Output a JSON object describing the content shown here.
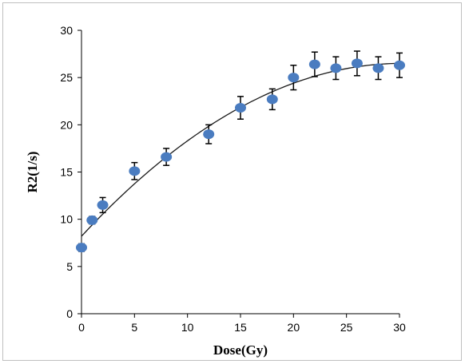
{
  "chart_data": {
    "type": "scatter",
    "xlabel": "Dose(Gy)",
    "ylabel": "R2(1/s)",
    "xlim": [
      0,
      30
    ],
    "ylim": [
      0,
      30
    ],
    "x_ticks": [
      0,
      5,
      10,
      15,
      20,
      25,
      30
    ],
    "y_ticks": [
      0,
      5,
      10,
      15,
      20,
      25,
      30
    ],
    "grid": false,
    "legend": "none",
    "series": [
      {
        "points": [
          {
            "x": 0,
            "y": 7.0,
            "err": 0.4
          },
          {
            "x": 1,
            "y": 9.9,
            "err": 0.4
          },
          {
            "x": 2,
            "y": 11.5,
            "err": 0.8
          },
          {
            "x": 5,
            "y": 15.1,
            "err": 0.9
          },
          {
            "x": 8,
            "y": 16.6,
            "err": 0.9
          },
          {
            "x": 12,
            "y": 19.0,
            "err": 1.0
          },
          {
            "x": 15,
            "y": 21.8,
            "err": 1.2
          },
          {
            "x": 18,
            "y": 22.7,
            "err": 1.1
          },
          {
            "x": 20,
            "y": 25.0,
            "err": 1.3
          },
          {
            "x": 22,
            "y": 26.4,
            "err": 1.3
          },
          {
            "x": 24,
            "y": 26.0,
            "err": 1.2
          },
          {
            "x": 26,
            "y": 26.5,
            "err": 1.3
          },
          {
            "x": 28,
            "y": 26.0,
            "err": 1.2
          },
          {
            "x": 30,
            "y": 26.3,
            "err": 1.3
          }
        ],
        "marker_color": "#4a7cc0",
        "error_bar_color": "#000000"
      }
    ],
    "fit": {
      "type": "quadratic",
      "coefficients": {
        "a": -0.02,
        "b": 1.21,
        "c": 8.2
      },
      "line_color": "#1a1a1a"
    }
  }
}
